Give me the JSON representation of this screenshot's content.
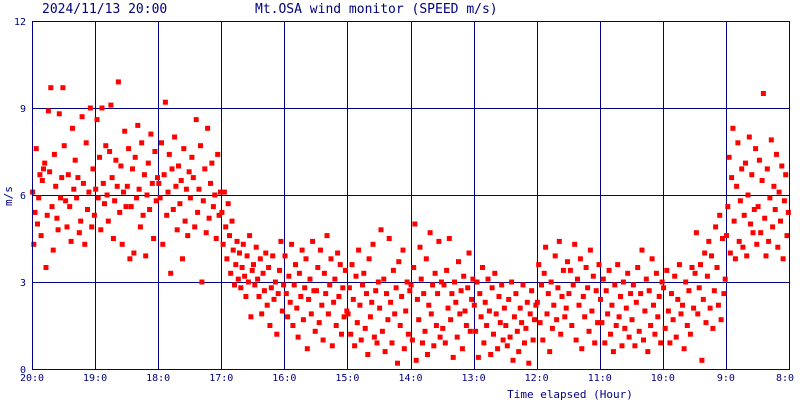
{
  "chart_data": {
    "type": "scatter",
    "timestamp": "2024/11/13 20:00",
    "title": "Mt.OSA wind monitor (SPEED m/s)",
    "xlabel": "Time elapsed (Hour)",
    "ylabel": "m/s",
    "x_direction": "reversed",
    "xlim": [
      20,
      8
    ],
    "ylim": [
      0,
      12
    ],
    "grid": true,
    "x_ticks": [
      {
        "value": 20,
        "label": "20:0"
      },
      {
        "value": 19,
        "label": "19:0"
      },
      {
        "value": 18,
        "label": "18:0"
      },
      {
        "value": 17,
        "label": "17:0"
      },
      {
        "value": 16,
        "label": "16:0"
      },
      {
        "value": 15,
        "label": "15:0"
      },
      {
        "value": 14,
        "label": "14:0"
      },
      {
        "value": 13,
        "label": "13:0"
      },
      {
        "value": 12,
        "label": "12:0"
      },
      {
        "value": 11,
        "label": "11:0"
      },
      {
        "value": 10,
        "label": "10:0"
      },
      {
        "value": 9,
        "label": "9:0"
      },
      {
        "value": 8,
        "label": "8:0"
      }
    ],
    "y_ticks": [
      {
        "value": 0,
        "label": "0"
      },
      {
        "value": 3,
        "label": "3"
      },
      {
        "value": 6,
        "label": "6"
      },
      {
        "value": 9,
        "label": "9"
      },
      {
        "value": 12,
        "label": "12"
      }
    ],
    "colors": {
      "points": "#ff0000",
      "grid": "#000080",
      "text": "#000080",
      "background": "#ffffff"
    },
    "series": [
      {
        "hours_segments": [
          {
            "x_from": 20.0,
            "x_to": 19.5,
            "y": [
              6.1,
              4.3,
              5.4,
              7.6,
              5.0,
              5.9,
              6.7,
              4.6,
              6.5,
              6.9,
              7.1,
              3.5,
              5.3,
              8.9,
              6.8,
              9.7,
              5.6,
              4.1,
              7.4,
              6.3,
              5.2,
              4.8,
              8.8,
              5.9,
              6.6,
              9.7
            ]
          },
          {
            "x_from": 19.5,
            "x_to": 19.0,
            "y": [
              7.7,
              5.8,
              4.9,
              6.7,
              5.6,
              4.4,
              8.3,
              6.2,
              7.2,
              5.9,
              6.6,
              4.7,
              5.1,
              8.7,
              6.4,
              4.3,
              7.8,
              5.5,
              6.1,
              9.0,
              4.9,
              6.9,
              5.3
            ]
          },
          {
            "x_from": 19.0,
            "x_to": 18.5,
            "y": [
              6.2,
              8.6,
              5.9,
              7.3,
              4.8,
              9.0,
              6.4,
              5.7,
              7.7,
              6.0,
              5.1,
              7.5,
              9.1,
              6.6,
              4.5,
              5.8,
              7.2,
              6.3,
              9.9,
              5.4,
              7.0,
              4.3,
              6.1,
              8.2,
              5.6
            ]
          },
          {
            "x_from": 18.5,
            "x_to": 18.0,
            "y": [
              6.3,
              7.6,
              3.8,
              5.6,
              6.9,
              4.0,
              7.3,
              5.9,
              8.4,
              6.2,
              4.9,
              7.8,
              5.3,
              6.7,
              3.9,
              6.0,
              7.1,
              5.5,
              8.1,
              6.4,
              4.5,
              7.5,
              5.8,
              6.6
            ]
          },
          {
            "x_from": 18.0,
            "x_to": 17.5,
            "y": [
              6.4,
              5.9,
              7.8,
              4.3,
              6.7,
              9.2,
              5.3,
              6.1,
              7.4,
              3.3,
              6.9,
              5.5,
              8.0,
              6.3,
              4.8,
              7.0,
              5.7,
              6.5,
              3.8,
              7.6,
              5.1,
              6.2,
              4.6,
              6.8
            ]
          },
          {
            "x_from": 17.5,
            "x_to": 17.0,
            "y": [
              5.9,
              7.3,
              6.6,
              4.9,
              8.6,
              5.4,
              6.2,
              7.7,
              3.0,
              5.8,
              6.9,
              4.7,
              8.3,
              5.2,
              6.4,
              7.1,
              5.6,
              6.0,
              4.5,
              7.4,
              5.3,
              6.1
            ]
          },
          {
            "x_from": 17.0,
            "x_to": 16.5,
            "y": [
              5.4,
              4.3,
              6.1,
              4.9,
              3.8,
              5.7,
              4.6,
              3.3,
              5.1,
              4.1,
              2.9,
              3.6,
              4.4,
              3.1,
              4.0,
              2.8,
              3.5,
              4.3,
              3.2,
              2.5,
              3.9,
              3.0,
              4.6,
              1.8,
              3.4
            ]
          },
          {
            "x_from": 16.5,
            "x_to": 16.0,
            "y": [
              3.6,
              2.9,
              4.2,
              3.1,
              2.5,
              3.8,
              1.9,
              3.3,
              2.7,
              4.0,
              2.2,
              3.5,
              1.5,
              2.8,
              3.9,
              2.4,
              3.0,
              1.2,
              2.6,
              3.4,
              4.4,
              2.0,
              2.9
            ]
          },
          {
            "x_from": 16.0,
            "x_to": 15.5,
            "y": [
              3.9,
              2.6,
              1.8,
              3.2,
              2.3,
              4.3,
              1.5,
              2.9,
              3.6,
              2.1,
              1.1,
              3.3,
              2.5,
              4.1,
              1.7,
              2.8,
              3.8,
              0.7,
              2.4,
              3.1,
              1.9,
              4.4,
              2.7,
              1.3
            ]
          },
          {
            "x_from": 15.5,
            "x_to": 15.0,
            "y": [
              2.7,
              3.5,
              1.6,
              4.1,
              2.2,
              1.0,
              3.3,
              2.6,
              4.6,
              1.9,
              2.9,
              3.8,
              0.8,
              2.3,
              3.1,
              1.5,
              4.0,
              2.5,
              3.6,
              1.2,
              2.8,
              1.8,
              3.4,
              2.0
            ]
          },
          {
            "x_from": 15.0,
            "x_to": 14.5,
            "y": [
              1.9,
              2.8,
              1.2,
              3.6,
              2.4,
              0.8,
              3.2,
              1.6,
              4.1,
              2.2,
              1.0,
              2.9,
              3.3,
              1.4,
              2.6,
              0.5,
              3.8,
              1.8,
              2.3,
              4.3,
              1.1,
              2.7,
              0.9,
              3.0
            ]
          },
          {
            "x_from": 14.5,
            "x_to": 14.0,
            "y": [
              2.1,
              4.8,
              1.3,
              3.1,
              0.6,
              2.6,
              1.7,
              4.5,
              2.3,
              0.9,
              3.4,
              1.9,
              2.8,
              0.2,
              3.7,
              1.5,
              2.5,
              4.1,
              0.7,
              2.0,
              3.0,
              1.2,
              2.7
            ]
          },
          {
            "x_from": 14.0,
            "x_to": 13.5,
            "y": [
              2.9,
              1.0,
              3.5,
              5.0,
              0.3,
              2.4,
              1.7,
              4.2,
              3.1,
              0.9,
              2.6,
              1.3,
              3.8,
              0.5,
              2.2,
              4.7,
              1.9,
              2.9,
              0.8,
              3.3,
              1.5,
              2.6,
              4.4,
              1.1,
              3.0
            ]
          },
          {
            "x_from": 13.5,
            "x_to": 13.0,
            "y": [
              1.4,
              2.9,
              0.9,
              3.4,
              2.1,
              4.5,
              1.7,
              2.6,
              0.4,
              3.0,
              2.3,
              1.1,
              3.7,
              1.9,
              2.7,
              0.7,
              3.2,
              2.0,
              1.5,
              2.8,
              4.0,
              1.3,
              2.4,
              3.1
            ]
          },
          {
            "x_from": 13.0,
            "x_to": 12.5,
            "y": [
              2.2,
              1.3,
              3.0,
              0.4,
              2.6,
              1.8,
              3.5,
              0.9,
              2.3,
              1.5,
              3.1,
              2.0,
              0.5,
              2.8,
              1.2,
              3.3,
              1.9,
              0.7,
              2.5,
              1.6,
              2.9,
              1.0,
              2.1
            ]
          },
          {
            "x_from": 12.5,
            "x_to": 12.0,
            "y": [
              1.5,
              0.8,
              2.4,
              1.1,
              3.0,
              0.3,
              1.8,
              2.6,
              1.3,
              0.6,
              2.1,
              1.6,
              2.9,
              0.9,
              1.4,
              2.3,
              0.2,
              1.9,
              2.7,
              1.0,
              1.7,
              2.2
            ]
          },
          {
            "x_from": 12.0,
            "x_to": 11.5,
            "y": [
              2.3,
              3.6,
              1.6,
              2.9,
              1.0,
              3.3,
              4.2,
              1.9,
              2.6,
              0.6,
              3.0,
              1.4,
              2.2,
              3.9,
              1.7,
              2.8,
              4.4,
              1.2,
              2.5,
              3.4,
              1.8,
              2.1,
              3.7
            ]
          },
          {
            "x_from": 11.5,
            "x_to": 11.0,
            "y": [
              2.6,
              3.4,
              1.5,
              2.9,
              4.3,
              1.0,
              3.1,
              2.2,
              3.8,
              0.7,
              2.5,
              1.8,
              3.5,
              2.8,
              1.3,
              4.1,
              2.0,
              3.2,
              0.9,
              2.7,
              1.6,
              3.6
            ]
          },
          {
            "x_from": 11.0,
            "x_to": 10.5,
            "y": [
              2.4,
              1.6,
              3.1,
              0.9,
              2.7,
              1.9,
              3.4,
              1.2,
              2.2,
              0.6,
              2.9,
              1.5,
              3.6,
              1.8,
              2.5,
              0.8,
              3.0,
              1.4,
              2.1,
              3.3,
              1.1,
              2.6
            ]
          },
          {
            "x_from": 10.5,
            "x_to": 10.0,
            "y": [
              1.7,
              2.9,
              0.8,
              2.3,
              3.5,
              1.3,
              2.6,
              4.1,
              1.0,
              2.0,
              3.1,
              0.6,
              2.7,
              1.5,
              3.8,
              2.2,
              1.2,
              3.3,
              1.8,
              2.5,
              0.9,
              3.0
            ]
          },
          {
            "x_from": 10.0,
            "x_to": 9.5,
            "y": [
              2.8,
              1.4,
              3.4,
              2.0,
              0.9,
              2.6,
              1.7,
              3.2,
              1.1,
              2.4,
              3.6,
              1.9,
              2.2,
              0.7,
              3.0,
              1.5,
              2.7,
              1.2,
              3.5,
              2.1
            ]
          },
          {
            "x_from": 9.5,
            "x_to": 9.0,
            "y": [
              3.3,
              4.7,
              1.9,
              2.8,
              3.6,
              0.3,
              2.4,
              4.0,
              1.6,
              3.2,
              4.4,
              2.1,
              3.9,
              1.4,
              2.7,
              4.9,
              3.5,
              2.2,
              5.3,
              1.7,
              4.5,
              2.6,
              3.1
            ]
          },
          {
            "x_from": 9.0,
            "x_to": 8.5,
            "y": [
              4.6,
              5.6,
              7.3,
              4.0,
              6.6,
              8.3,
              5.1,
              3.8,
              6.3,
              7.8,
              4.4,
              5.8,
              6.9,
              4.2,
              5.3,
              7.1,
              3.9,
              6.0,
              8.0,
              5.0,
              6.7,
              4.7,
              5.5,
              7.6,
              4.3
            ]
          },
          {
            "x_from": 8.5,
            "x_to": 8.0,
            "y": [
              5.6,
              7.2,
              4.7,
              6.5,
              9.5,
              5.2,
              3.9,
              6.9,
              4.4,
              5.9,
              7.9,
              4.9,
              6.3,
              5.5,
              7.4,
              4.2,
              6.1,
              5.1,
              7.0,
              3.8,
              5.8,
              6.7,
              4.6,
              5.4
            ]
          }
        ]
      }
    ]
  }
}
